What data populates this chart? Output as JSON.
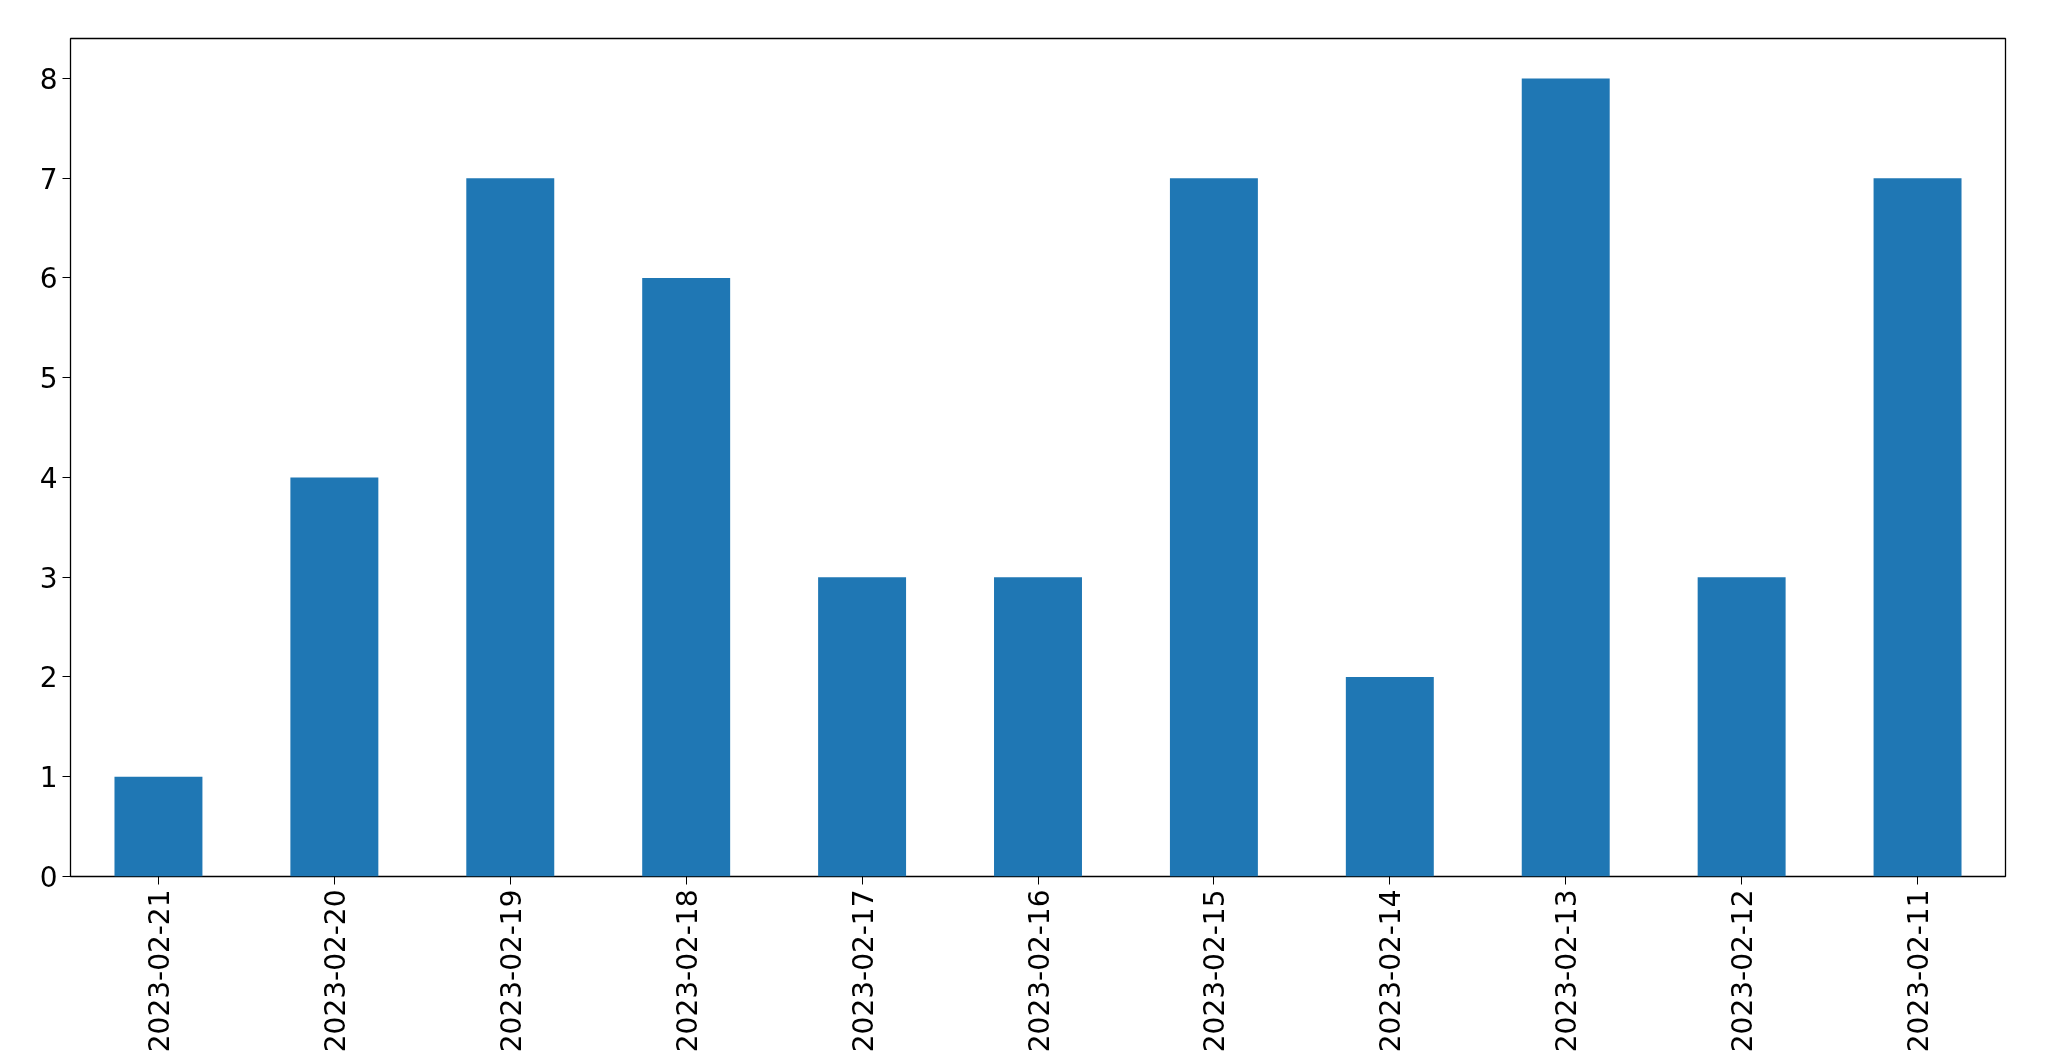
{
  "chart_data": {
    "type": "bar",
    "categories": [
      "2023-02-21",
      "2023-02-20",
      "2023-02-19",
      "2023-02-18",
      "2023-02-17",
      "2023-02-16",
      "2023-02-15",
      "2023-02-14",
      "2023-02-13",
      "2023-02-12",
      "2023-02-11"
    ],
    "values": [
      1,
      4,
      7,
      6,
      3,
      3,
      7,
      2,
      8,
      3,
      7
    ],
    "color": "#1f77b4",
    "ylim": [
      0,
      8.4
    ],
    "yticks": [
      0,
      1,
      2,
      3,
      4,
      5,
      6,
      7,
      8
    ]
  }
}
